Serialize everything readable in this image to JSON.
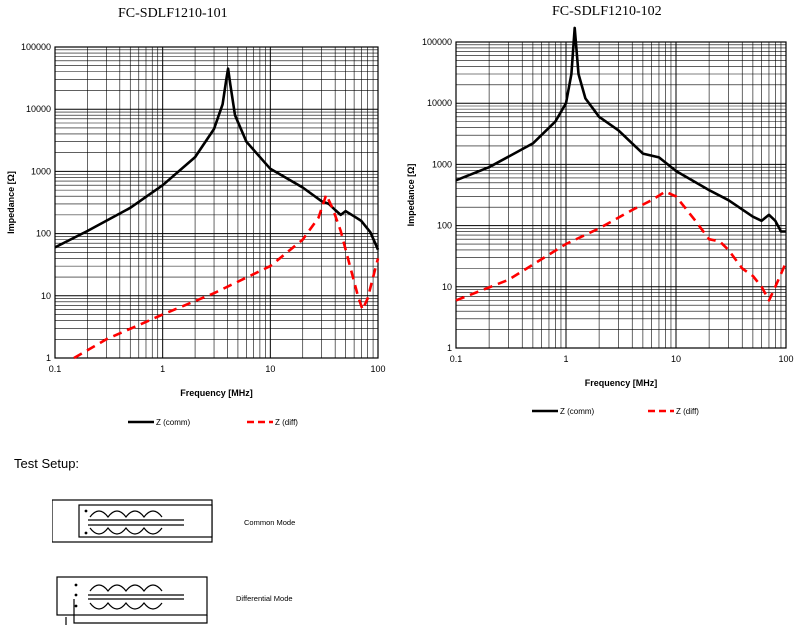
{
  "charts": [
    {
      "title": "FC-SDLF1210-101",
      "xlabel": "Frequency [MHz]",
      "ylabel": "Impedance [Ω]",
      "xticks": [
        "0.1",
        "1",
        "10",
        "100"
      ],
      "yticks": [
        "1",
        "10",
        "100",
        "1000",
        "10000",
        "100000"
      ],
      "legend": [
        "Z (comm)",
        "Z (diff)"
      ]
    },
    {
      "title": "FC-SDLF1210-102",
      "xlabel": "Frequency [MHz]",
      "ylabel": "Impedance [Ω]",
      "xticks": [
        "0.1",
        "1",
        "10",
        "100"
      ],
      "yticks": [
        "1",
        "10",
        "100",
        "1000",
        "10000",
        "100000"
      ],
      "legend": [
        "Z (comm)",
        "Z (diff)"
      ]
    }
  ],
  "chart_data": [
    {
      "type": "line",
      "title": "FC-SDLF1210-101",
      "xlabel": "Frequency [MHz]",
      "ylabel": "Impedance [Ω]",
      "xscale": "log",
      "yscale": "log",
      "xlim": [
        0.1,
        100
      ],
      "ylim": [
        1,
        100000
      ],
      "grid": true,
      "legend_position": "bottom",
      "series": [
        {
          "name": "Z (comm)",
          "color": "#000000",
          "style": "solid",
          "points": [
            [
              0.1,
              60
            ],
            [
              0.2,
              110
            ],
            [
              0.5,
              260
            ],
            [
              1,
              600
            ],
            [
              2,
              1700
            ],
            [
              3,
              4800
            ],
            [
              3.6,
              12000
            ],
            [
              3.9,
              30000
            ],
            [
              4.05,
              45000
            ],
            [
              4.25,
              25000
            ],
            [
              4.7,
              8000
            ],
            [
              6,
              3000
            ],
            [
              10,
              1100
            ],
            [
              20,
              550
            ],
            [
              30,
              330
            ],
            [
              35,
              300
            ],
            [
              40,
              240
            ],
            [
              45,
              200
            ],
            [
              50,
              230
            ],
            [
              60,
              190
            ],
            [
              70,
              160
            ],
            [
              85,
              105
            ],
            [
              100,
              55
            ]
          ]
        },
        {
          "name": "Z (diff)",
          "color": "#ff0000",
          "style": "dashed",
          "points": [
            [
              0.15,
              1
            ],
            [
              0.3,
              2
            ],
            [
              1,
              5
            ],
            [
              3,
              11
            ],
            [
              10,
              30
            ],
            [
              20,
              80
            ],
            [
              28,
              180
            ],
            [
              33,
              420
            ],
            [
              38,
              250
            ],
            [
              45,
              110
            ],
            [
              55,
              30
            ],
            [
              65,
              10
            ],
            [
              72,
              6
            ],
            [
              80,
              9
            ],
            [
              90,
              20
            ],
            [
              100,
              40
            ]
          ]
        }
      ]
    },
    {
      "type": "line",
      "title": "FC-SDLF1210-102",
      "xlabel": "Frequency [MHz]",
      "ylabel": "Impedance [Ω]",
      "xscale": "log",
      "yscale": "log",
      "xlim": [
        0.1,
        100
      ],
      "ylim": [
        1,
        100000
      ],
      "grid": true,
      "legend_position": "bottom",
      "series": [
        {
          "name": "Z (comm)",
          "color": "#000000",
          "style": "solid",
          "points": [
            [
              0.1,
              550
            ],
            [
              0.2,
              900
            ],
            [
              0.5,
              2200
            ],
            [
              0.8,
              5000
            ],
            [
              1,
              10000
            ],
            [
              1.12,
              30000
            ],
            [
              1.2,
              170000
            ],
            [
              1.3,
              30000
            ],
            [
              1.5,
              12000
            ],
            [
              2,
              6000
            ],
            [
              3,
              3600
            ],
            [
              5,
              1500
            ],
            [
              7,
              1300
            ],
            [
              10,
              780
            ],
            [
              20,
              380
            ],
            [
              30,
              260
            ],
            [
              50,
              140
            ],
            [
              60,
              120
            ],
            [
              70,
              150
            ],
            [
              80,
              120
            ],
            [
              90,
              80
            ],
            [
              100,
              80
            ]
          ]
        },
        {
          "name": "Z (diff)",
          "color": "#ff0000",
          "style": "dashed",
          "points": [
            [
              0.1,
              6
            ],
            [
              0.3,
              13
            ],
            [
              1,
              50
            ],
            [
              2,
              90
            ],
            [
              4,
              180
            ],
            [
              6,
              260
            ],
            [
              8,
              360
            ],
            [
              10,
              300
            ],
            [
              15,
              120
            ],
            [
              20,
              60
            ],
            [
              25,
              55
            ],
            [
              30,
              40
            ],
            [
              40,
              20
            ],
            [
              50,
              15
            ],
            [
              60,
              10
            ],
            [
              70,
              6
            ],
            [
              80,
              10
            ],
            [
              100,
              25
            ]
          ]
        }
      ]
    }
  ],
  "setup": {
    "title": "Test Setup:",
    "common_label": "Common Mode",
    "diff_label": "Differential Mode"
  }
}
